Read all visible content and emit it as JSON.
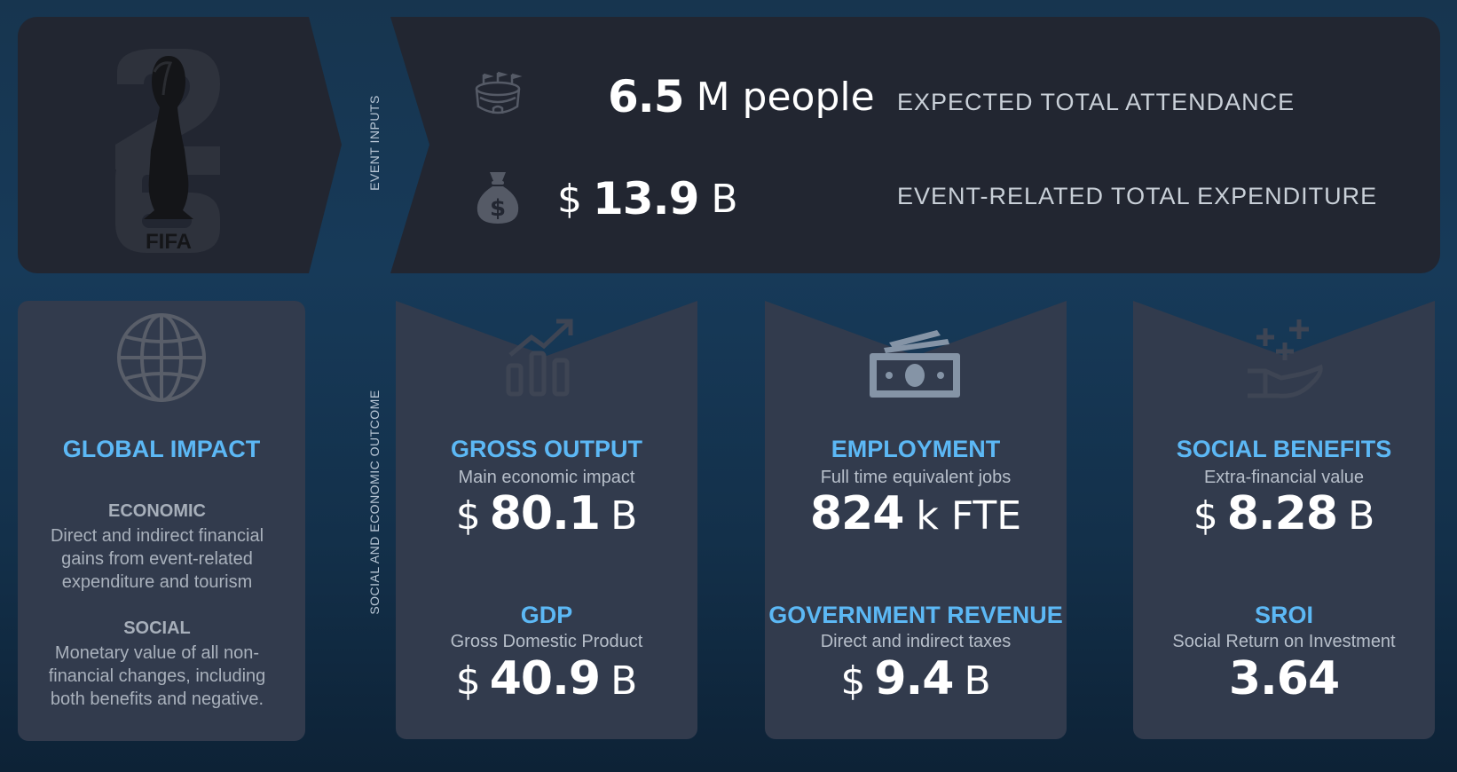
{
  "logo": {
    "text": "FIFA",
    "number": "26"
  },
  "event_inputs": {
    "section_label": "EVENT INPUTS",
    "rows": [
      {
        "icon": "stadium-icon",
        "value": "6.5",
        "unit": "M people",
        "description": "EXPECTED  TOTAL ATTENDANCE"
      },
      {
        "icon": "money-bag-icon",
        "currency": "$",
        "value": "13.9",
        "unit": "B",
        "description": "EVENT-RELATED TOTAL EXPENDITURE"
      }
    ]
  },
  "outcome_label": "SOCIAL AND ECONOMIC OUTCOME",
  "global_impact": {
    "icon": "globe-icon",
    "title": "GLOBAL IMPACT",
    "economic_heading": "ECONOMIC",
    "economic_text": [
      "Direct and indirect financial",
      "gains from event-related",
      "expenditure and tourism"
    ],
    "social_heading": "SOCIAL",
    "social_text": [
      "Monetary value of all non-",
      "financial changes, including",
      "both benefits and negative."
    ]
  },
  "cards": [
    {
      "icon": "chart-growth-icon",
      "top": {
        "title": "GROSS OUTPUT",
        "subtitle": "Main economic impact",
        "currency": "$",
        "value": "80.1",
        "unit": "B"
      },
      "bottom": {
        "title": "GDP",
        "subtitle": "Gross Domestic Product",
        "currency": "$",
        "value": "40.9",
        "unit": "B"
      }
    },
    {
      "icon": "cash-icon",
      "top": {
        "title": "EMPLOYMENT",
        "subtitle": "Full time equivalent jobs",
        "currency": "",
        "value": "824",
        "unit": "k FTE"
      },
      "bottom": {
        "title": "GOVERNMENT REVENUE",
        "subtitle": "Direct and indirect taxes",
        "currency": "$",
        "value": "9.4",
        "unit": "B"
      }
    },
    {
      "icon": "hand-plus-icon",
      "top": {
        "title": "SOCIAL BENEFITS",
        "subtitle": "Extra-financial value",
        "currency": "$",
        "value": "8.28",
        "unit": "B"
      },
      "bottom": {
        "title": "SROI",
        "subtitle": "Social Return on Investment",
        "currency": "",
        "value": "3.64",
        "unit": ""
      }
    }
  ],
  "colors": {
    "accent": "#5cb8f5",
    "panel": "#222631",
    "card": "#323b4d",
    "background": "#17354f"
  }
}
